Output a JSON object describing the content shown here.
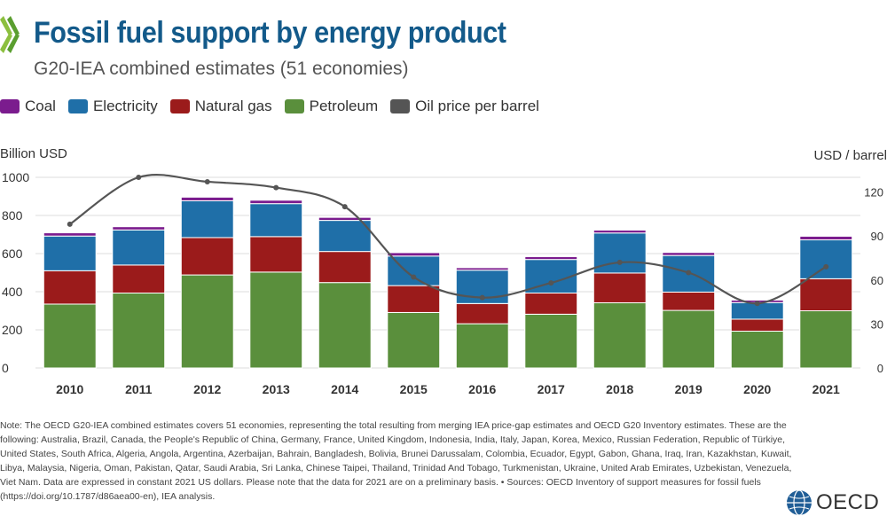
{
  "header": {
    "title": "Fossil fuel support by energy product",
    "subtitle": "G20-IEA combined estimates (51 economies)"
  },
  "colors": {
    "coal": "#7b1c8e",
    "electricity": "#1f6fa8",
    "natural_gas": "#9b1b1b",
    "petroleum": "#5a8f3c",
    "oil_price": "#555555",
    "title": "#135a8a"
  },
  "chart_data": {
    "type": "bar",
    "stacked": true,
    "left_axis_label": "Billion USD",
    "right_axis_label": "USD / barrel",
    "left_ylim": [
      0,
      1000
    ],
    "left_ticks": [
      "0",
      "200",
      "400",
      "600",
      "800",
      "1000"
    ],
    "right_ylim": [
      0,
      130
    ],
    "right_ticks": [
      "0",
      "30",
      "60",
      "90",
      "120"
    ],
    "categories": [
      "2010",
      "2011",
      "2012",
      "2013",
      "2014",
      "2015",
      "2016",
      "2017",
      "2018",
      "2019",
      "2020",
      "2021"
    ],
    "series": [
      {
        "name": "Petroleum",
        "key": "petroleum",
        "values": [
          335,
          393,
          488,
          503,
          448,
          291,
          232,
          282,
          342,
          302,
          193,
          300
        ]
      },
      {
        "name": "Natural gas",
        "key": "natural_gas",
        "values": [
          175,
          147,
          196,
          186,
          163,
          141,
          106,
          111,
          156,
          96,
          63,
          168
        ]
      },
      {
        "name": "Electricity",
        "key": "electricity",
        "values": [
          182,
          184,
          193,
          173,
          163,
          155,
          175,
          176,
          210,
          192,
          87,
          204
        ]
      },
      {
        "name": "Coal",
        "key": "coal",
        "values": [
          17,
          17,
          19,
          18,
          16,
          18,
          13,
          15,
          15,
          16,
          13,
          19
        ]
      }
    ],
    "line": {
      "name": "Oil price per barrel",
      "values": [
        98,
        130,
        127,
        123,
        110,
        62,
        48,
        58,
        72,
        65,
        44,
        69
      ]
    },
    "legend_position": "top-left",
    "grid": true
  },
  "legend": [
    {
      "label": "Coal",
      "key": "coal"
    },
    {
      "label": "Electricity",
      "key": "electricity"
    },
    {
      "label": "Natural gas",
      "key": "natural_gas"
    },
    {
      "label": "Petroleum",
      "key": "petroleum"
    },
    {
      "label": "Oil price per barrel",
      "key": "oil_price"
    }
  ],
  "note": "Note: The OECD G20-IEA combined estimates covers 51 economies, representing the total resulting from merging IEA price-gap estimates and OECD G20 Inventory estimates. These are the following: Australia, Brazil, Canada, the People's Republic of China, Germany, France, United Kingdom, Indonesia, India, Italy, Japan, Korea, Mexico, Russian Federation, Republic of Türkiye, United States, South Africa, Algeria, Angola, Argentina, Azerbaijan, Bahrain, Bangladesh, Bolivia, Brunei Darussalam, Colombia, Ecuador, Egypt, Gabon, Ghana, Iraq, Iran, Kazakhstan, Kuwait, Libya, Malaysia, Nigeria, Oman, Pakistan, Qatar, Saudi Arabia, Sri Lanka, Chinese Taipei, Thailand, Trinidad And Tobago, Turkmenistan, Ukraine, United Arab Emirates, Uzbekistan, Venezuela, Viet Nam. Data are expressed in constant 2021 US dollars. Please note that the data for 2021 are on a preliminary basis. • Sources: OECD Inventory of support measures for fossil fuels (https://doi.org/10.1787/d86aea00-en), IEA analysis.",
  "brand": {
    "name": "OECD",
    "icon": "globe-icon"
  }
}
